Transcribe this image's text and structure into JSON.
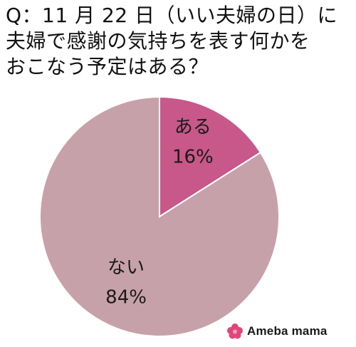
{
  "title_lines": [
    "Q：11 月 22 日（いい夫婦の日）に",
    "夫婦で感謝の気持ちを表す何かを",
    "おこなう予定はある？"
  ],
  "chart_data": {
    "type": "pie",
    "title": "Q：11 月 22 日（いい夫婦の日）に夫婦で感謝の気持ちを表す何かをおこなう予定はある？",
    "start_angle_deg": 0,
    "direction": "clockwise",
    "slices": [
      {
        "label": "ある",
        "value": 16,
        "value_label": "16%",
        "color": "#c8588a"
      },
      {
        "label": "ない",
        "value": 84,
        "value_label": "84%",
        "color": "#c7a1a9"
      }
    ],
    "stroke_color": "#ffffff"
  },
  "logo": {
    "text": "Ameba mama",
    "icon": "flower-logo-icon",
    "color": "#e0457b"
  }
}
